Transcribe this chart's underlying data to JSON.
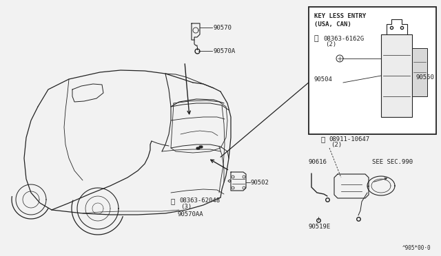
{
  "bg_color": "#f2f2f2",
  "fig_note": "^905*00·0",
  "box_label_line1": "KEY LESS ENTRY",
  "box_label_line2": "(USA, CAN)",
  "car_color": "white",
  "line_color": "#222222"
}
